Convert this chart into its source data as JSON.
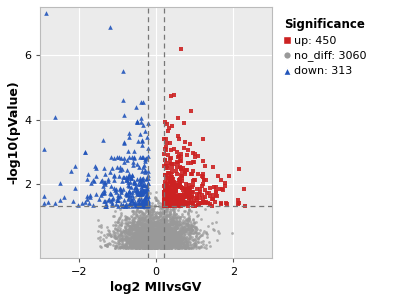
{
  "title": "",
  "xlabel": "log2 MIIvsGV",
  "ylabel": "-log10(pValue)",
  "xlim": [
    -3.0,
    3.0
  ],
  "ylim": [
    -0.3,
    7.5
  ],
  "xticks": [
    -2,
    0,
    2
  ],
  "yticks": [
    2,
    4,
    6
  ],
  "hline_y": 1.3,
  "vline_x1": -0.2,
  "vline_x2": 0.2,
  "n_up": 450,
  "n_nodiff": 3060,
  "n_down": 313,
  "color_up": "#CC2222",
  "color_nodiff": "#999999",
  "color_down": "#2255BB",
  "background_color": "#FFFFFF",
  "panel_background": "#EBEBEB",
  "grid_color": "#FFFFFF",
  "legend_title": "Significance",
  "seed": 42,
  "fig_width": 4.0,
  "fig_height": 3.01,
  "dpi": 100
}
